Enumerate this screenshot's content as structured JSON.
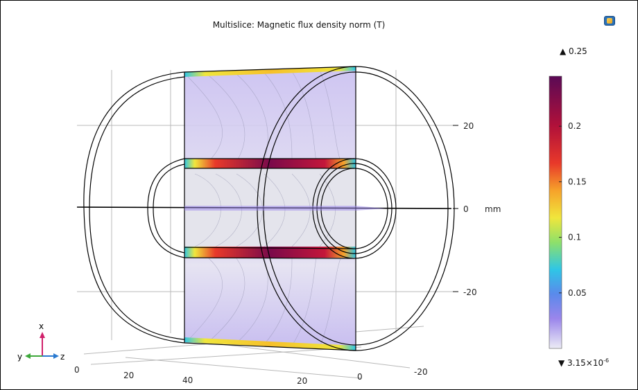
{
  "plot": {
    "title": "Multislice: Magnetic flux density norm (T)"
  },
  "colorbar": {
    "max_label": "0.25",
    "min_mantissa": "3.15×10",
    "min_exponent": "-6",
    "ticks": [
      "0.2",
      "0.15",
      "0.1",
      "0.05"
    ],
    "range": [
      3.15e-06,
      0.245
    ],
    "colormap": [
      "#ececf5",
      "#9a85eb",
      "#5a8aeb",
      "#2fc6e6",
      "#8ee06a",
      "#f0e63c",
      "#f6a22a",
      "#e8392a",
      "#b0103a",
      "#5a0a55"
    ]
  },
  "axes": {
    "vertical_ticks": [
      "20",
      "0",
      "-20"
    ],
    "unit": "mm",
    "bottom_ticks": [
      "0",
      "20",
      "40",
      "20",
      "0",
      "-20"
    ]
  },
  "triad": {
    "x": "x",
    "y": "y",
    "z": "z"
  }
}
